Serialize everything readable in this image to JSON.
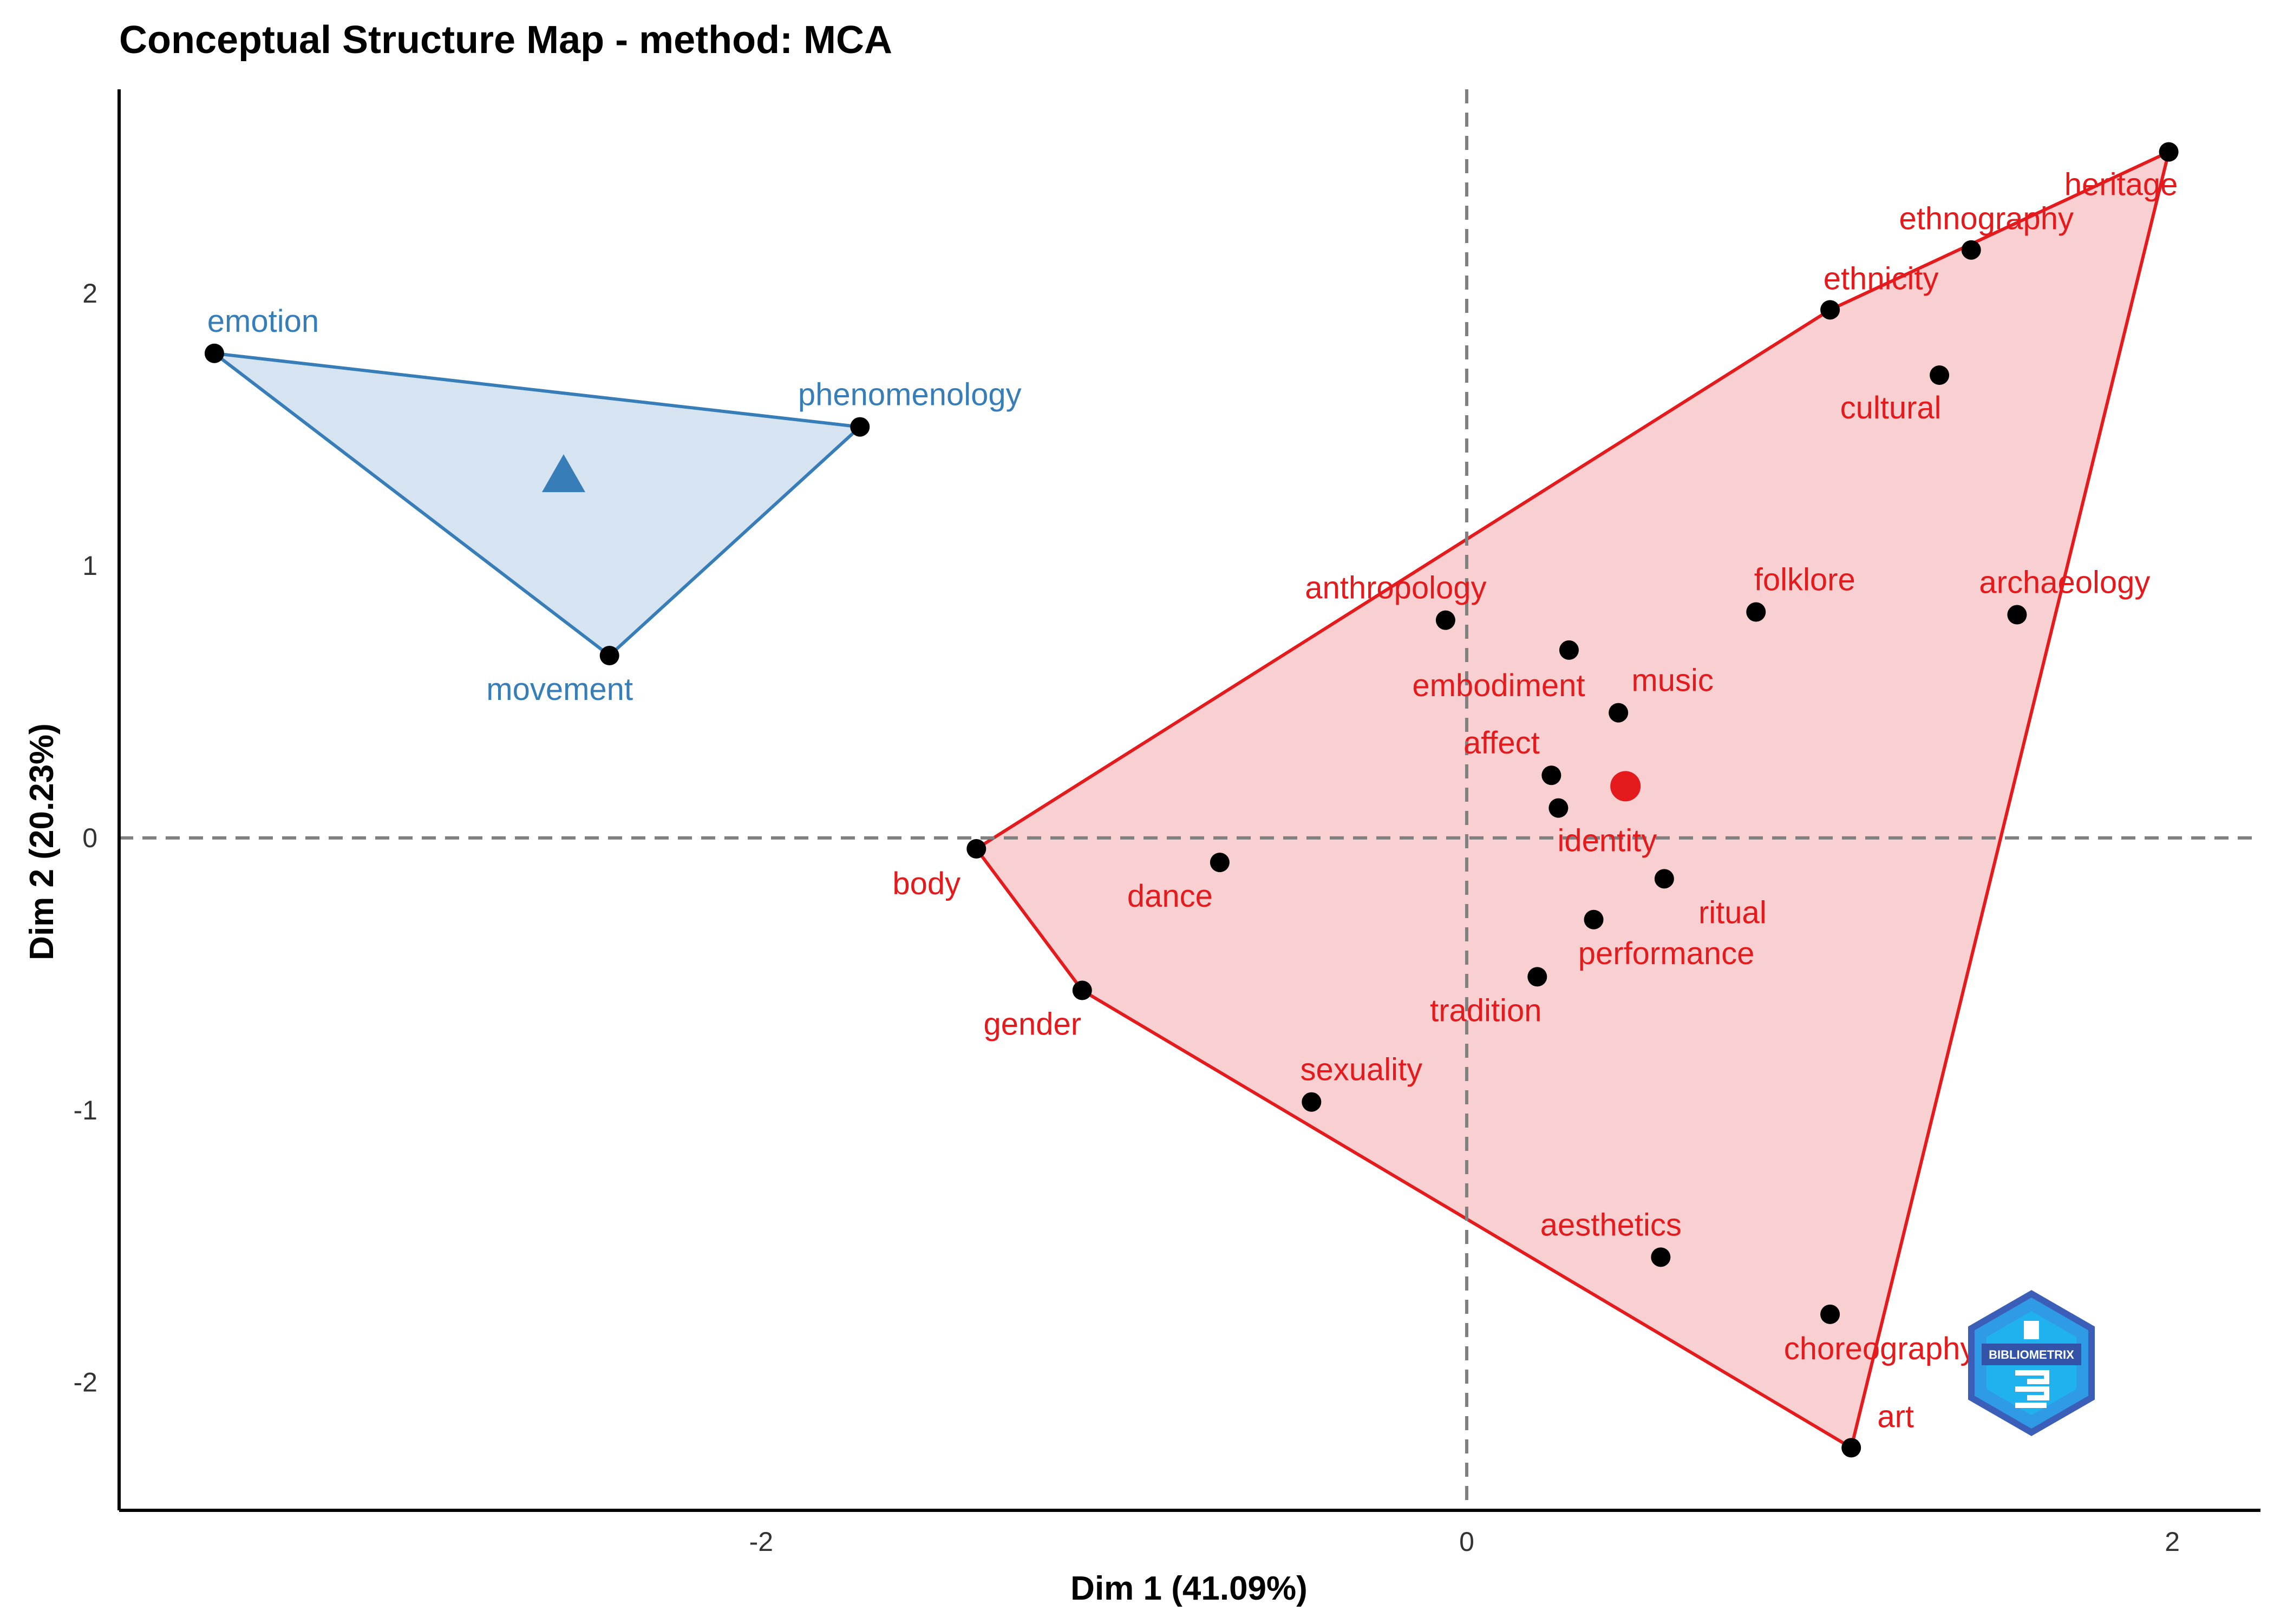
{
  "chart_data": {
    "type": "scatter",
    "title": "Conceptual Structure Map - method: MCA",
    "xlabel": "Dim 1 (41.09%)",
    "ylabel": "Dim 2 (20.23%)",
    "xlim": [
      -3.82,
      2.25
    ],
    "ylim": [
      -2.47,
      2.75
    ],
    "xticks": [
      -2,
      0,
      2
    ],
    "yticks": [
      -2,
      -1,
      0,
      1,
      2
    ],
    "reference_lines": {
      "x": 0,
      "y": 0
    },
    "grid": false,
    "clusters": [
      {
        "color": "#377eb8",
        "fill": "#d6e4f1",
        "centroid": {
          "x": -2.56,
          "y": 1.33,
          "shape": "triangle"
        },
        "hull": [
          "emotion",
          "phenomenology",
          "movement"
        ],
        "points": [
          {
            "label": "emotion",
            "x": -3.55,
            "y": 1.78
          },
          {
            "label": "phenomenology",
            "x": -1.72,
            "y": 1.51
          },
          {
            "label": "movement",
            "x": -2.43,
            "y": 0.67
          }
        ]
      },
      {
        "color": "#e41a1c",
        "fill": "#f8d0d1",
        "centroid": {
          "x": 0.45,
          "y": 0.19,
          "shape": "circle"
        },
        "hull": [
          "heritage",
          "art",
          "gender",
          "body",
          "ethnicity"
        ],
        "points": [
          {
            "label": "heritage",
            "x": 1.99,
            "y": 2.52
          },
          {
            "label": "ethnography",
            "x": 1.43,
            "y": 2.16
          },
          {
            "label": "ethnicity",
            "x": 1.03,
            "y": 1.94
          },
          {
            "label": "cultural",
            "x": 1.34,
            "y": 1.7
          },
          {
            "label": "anthropology",
            "x": -0.06,
            "y": 0.8
          },
          {
            "label": "folklore",
            "x": 0.82,
            "y": 0.83
          },
          {
            "label": "archaeology",
            "x": 1.56,
            "y": 0.82
          },
          {
            "label": "embodiment",
            "x": 0.29,
            "y": 0.69
          },
          {
            "label": "music",
            "x": 0.43,
            "y": 0.46
          },
          {
            "label": "affect",
            "x": 0.24,
            "y": 0.23
          },
          {
            "label": "identity",
            "x": 0.26,
            "y": 0.11
          },
          {
            "label": "body",
            "x": -1.39,
            "y": -0.04
          },
          {
            "label": "dance",
            "x": -0.7,
            "y": -0.09
          },
          {
            "label": "ritual",
            "x": 0.56,
            "y": -0.15
          },
          {
            "label": "performance",
            "x": 0.36,
            "y": -0.3
          },
          {
            "label": "tradition",
            "x": 0.2,
            "y": -0.51
          },
          {
            "label": "gender",
            "x": -1.09,
            "y": -0.56
          },
          {
            "label": "sexuality",
            "x": -0.44,
            "y": -0.97
          },
          {
            "label": "aesthetics",
            "x": 0.55,
            "y": -1.54
          },
          {
            "label": "choreography",
            "x": 1.03,
            "y": -1.75
          },
          {
            "label": "art",
            "x": 1.09,
            "y": -2.24
          }
        ]
      }
    ]
  },
  "logo": {
    "text": "BIBLIOMETRIX",
    "icon": "bibliometrix-hexagon-logo"
  }
}
